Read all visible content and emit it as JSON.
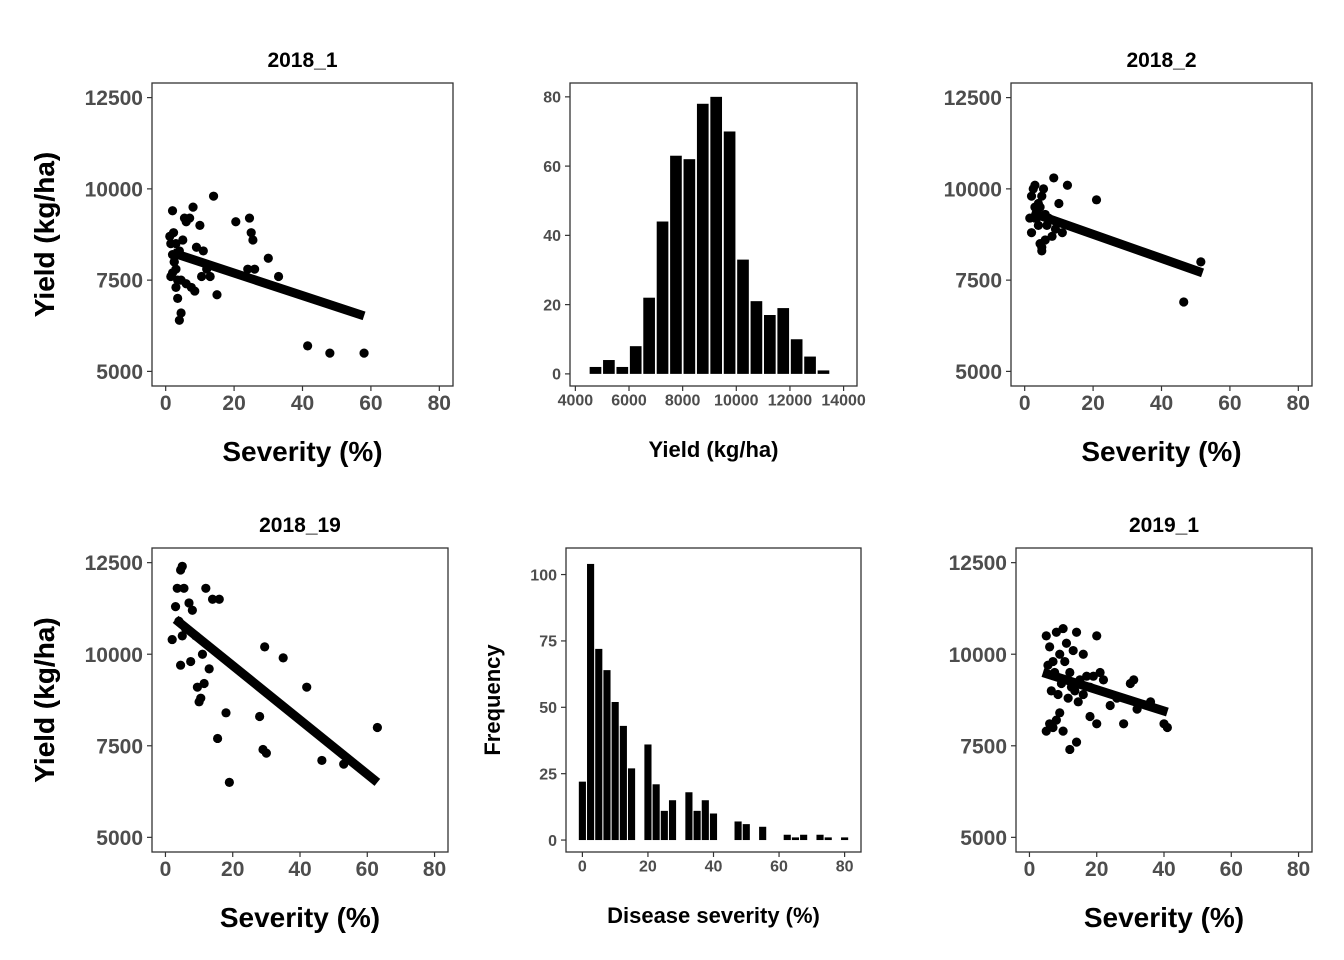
{
  "chart_data": [
    {
      "type": "scatter",
      "title": "2018_1",
      "xlabel": "Severity (%)",
      "ylabel": "Yield (kg/ha)",
      "xlim": [
        -4,
        84
      ],
      "ylim": [
        4600,
        12900
      ],
      "xticks": [
        0,
        20,
        40,
        60,
        80
      ],
      "yticks": [
        5000,
        7500,
        10000,
        12500
      ],
      "x": [
        1.2,
        1.5,
        2.0,
        2.3,
        2.0,
        2.5,
        3.0,
        3.5,
        3.0,
        4.0,
        4.5,
        5.0,
        5.5,
        6.0,
        7.0,
        8.0,
        9.0,
        10.0,
        11.0,
        1.5,
        2.5,
        3.5,
        4.5,
        6.0,
        7.5,
        8.5,
        10.5,
        14.0,
        12.0,
        13.0,
        15.0,
        3.0,
        4.0,
        2.0,
        20.5,
        24.5,
        25.0,
        25.5,
        24.0,
        26.0,
        30.0,
        33.0,
        41.5,
        48.0,
        58.0
      ],
      "y": [
        8700,
        8500,
        8200,
        8800,
        9400,
        8000,
        7800,
        7500,
        7300,
        8300,
        7500,
        8600,
        9200,
        9100,
        9200,
        9500,
        8400,
        9000,
        8300,
        7600,
        8000,
        7000,
        6600,
        7400,
        7300,
        7200,
        7600,
        9800,
        7800,
        7600,
        7100,
        8500,
        6400,
        7700,
        9100,
        9200,
        8800,
        8600,
        7800,
        7800,
        8100,
        7600,
        5700,
        5500,
        5500
      ],
      "trend": {
        "x": [
          2,
          58
        ],
        "y": [
          8250,
          6520
        ]
      }
    },
    {
      "type": "bar",
      "title": "",
      "xlabel": "Yield (kg/ha)",
      "ylabel": "",
      "xlim": [
        3800,
        14500
      ],
      "ylim": [
        -3.5,
        84
      ],
      "xticks": [
        4000,
        6000,
        8000,
        10000,
        12000,
        14000
      ],
      "yticks": [
        0,
        20,
        40,
        60,
        80
      ],
      "bin_width": 500,
      "bins": [
        4750,
        5250,
        5750,
        6250,
        6750,
        7250,
        7750,
        8250,
        8750,
        9250,
        9750,
        10250,
        10750,
        11250,
        11750,
        12250,
        12750,
        13250
      ],
      "values": [
        2,
        4,
        2,
        8,
        22,
        44,
        63,
        62,
        78,
        80,
        70,
        33,
        21,
        17,
        19,
        10,
        5,
        1
      ]
    },
    {
      "type": "scatter",
      "title": "2018_2",
      "xlabel": "Severity (%)",
      "ylabel": "Yield (kg/ha)",
      "xlim": [
        -4,
        84
      ],
      "ylim": [
        4600,
        12900
      ],
      "xticks": [
        0,
        20,
        40,
        60,
        80
      ],
      "yticks": [
        5000,
        7500,
        10000,
        12500
      ],
      "x": [
        1.5,
        2.0,
        2.5,
        3.0,
        3.0,
        3.5,
        4.0,
        4.0,
        4.5,
        5.0,
        5.0,
        5.5,
        6.0,
        6.0,
        7.0,
        8.0,
        8.5,
        9.0,
        10.0,
        11.0,
        12.5,
        2.0,
        3.0,
        4.5,
        5.0,
        6.5,
        21.0,
        46.5,
        51.5
      ],
      "y": [
        9200,
        9800,
        10000,
        9500,
        10100,
        9200,
        9600,
        9000,
        8500,
        8400,
        9800,
        10000,
        8600,
        9300,
        9200,
        8700,
        10300,
        8900,
        9600,
        8800,
        10100,
        8800,
        9200,
        9500,
        8300,
        9000,
        9700,
        6900,
        8000
      ],
      "trend": {
        "x": [
          2,
          52
        ],
        "y": [
          9350,
          7700
        ]
      }
    },
    {
      "type": "scatter",
      "title": "2018_19",
      "xlabel": "Severity (%)",
      "ylabel": "Yield (kg/ha)",
      "xlim": [
        -4,
        84
      ],
      "ylim": [
        4600,
        12900
      ],
      "xticks": [
        0,
        20,
        40,
        60,
        80
      ],
      "yticks": [
        5000,
        7500,
        10000,
        12500
      ],
      "x": [
        2.0,
        3.0,
        3.5,
        4.0,
        4.5,
        5.0,
        5.5,
        6.0,
        7.0,
        8.0,
        9.0,
        10.0,
        11.0,
        12.0,
        13.0,
        14.0,
        16.0,
        4.5,
        5.0,
        7.5,
        9.5,
        10.5,
        11.5,
        15.5,
        18.0,
        19.0,
        28.0,
        29.0,
        30.0,
        29.5,
        35.0,
        42.0,
        46.5,
        53.0,
        63.0
      ],
      "y": [
        10400,
        11300,
        11800,
        10900,
        12300,
        12400,
        11800,
        10700,
        11400,
        11200,
        10500,
        8700,
        10000,
        11800,
        9600,
        11500,
        11500,
        9700,
        10500,
        9800,
        9100,
        8800,
        9200,
        7700,
        8400,
        6500,
        8300,
        7400,
        7300,
        10200,
        9900,
        9100,
        7100,
        7000,
        8000
      ],
      "trend": {
        "x": [
          3,
          63
        ],
        "y": [
          10950,
          6500
        ]
      }
    },
    {
      "type": "bar",
      "title": "",
      "xlabel": "Disease severity (%)",
      "ylabel": "Frequency",
      "xlim": [
        -5,
        85
      ],
      "ylim": [
        -4.5,
        110
      ],
      "xticks": [
        0,
        20,
        40,
        60,
        80
      ],
      "yticks": [
        0,
        25,
        50,
        75,
        100
      ],
      "bin_width": 2.5,
      "bins": [
        0,
        2.5,
        5,
        7.5,
        10,
        12.5,
        15,
        17.5,
        20,
        22.5,
        25,
        27.5,
        30,
        32.5,
        35,
        37.5,
        40,
        42.5,
        45,
        47.5,
        50,
        52.5,
        55,
        57.5,
        60,
        62.5,
        65,
        67.5,
        70,
        72.5,
        75,
        77.5,
        80
      ],
      "values": [
        22,
        104,
        72,
        64,
        52,
        43,
        27,
        0,
        36,
        21,
        11,
        15,
        0,
        18,
        11,
        15,
        10,
        0,
        0,
        7,
        6,
        0,
        5,
        0,
        0,
        2,
        1,
        2,
        0,
        2,
        1,
        0,
        1
      ]
    },
    {
      "type": "scatter",
      "title": "2019_1",
      "xlabel": "Severity (%)",
      "ylabel": "Yield (kg/ha)",
      "xlim": [
        -4,
        84
      ],
      "ylim": [
        4600,
        12900
      ],
      "xticks": [
        0,
        20,
        40,
        60,
        80
      ],
      "yticks": [
        5000,
        7500,
        10000,
        12500
      ],
      "x": [
        5.0,
        6.0,
        7.0,
        8.0,
        9.0,
        10.0,
        10.5,
        11.0,
        12.0,
        13.0,
        14.0,
        15.0,
        16.0,
        17.0,
        18.0,
        19.0,
        20.0,
        21.0,
        22.0,
        5.5,
        6.5,
        7.5,
        8.5,
        9.5,
        11.5,
        12.5,
        13.5,
        14.5,
        5.0,
        6.0,
        7.0,
        8.0,
        9.0,
        10.0,
        12.0,
        14.0,
        16.0,
        18.0,
        20.0,
        24.0,
        26.0,
        28.0,
        30.0,
        31.0,
        32.0,
        36.0,
        40.0,
        41.0
      ],
      "y": [
        10500,
        10200,
        9800,
        10600,
        10000,
        10700,
        9800,
        10300,
        9500,
        10100,
        10600,
        9300,
        10000,
        9400,
        9100,
        9400,
        10500,
        9500,
        9300,
        9700,
        9000,
        9500,
        8900,
        9200,
        8800,
        9100,
        9000,
        8700,
        7900,
        8100,
        8000,
        8200,
        8400,
        7900,
        7400,
        7600,
        8900,
        8300,
        8100,
        8600,
        8800,
        8100,
        9200,
        9300,
        8500,
        8700,
        8100,
        8000
      ],
      "trend": {
        "x": [
          4,
          41
        ],
        "y": [
          9500,
          8420
        ]
      }
    }
  ]
}
